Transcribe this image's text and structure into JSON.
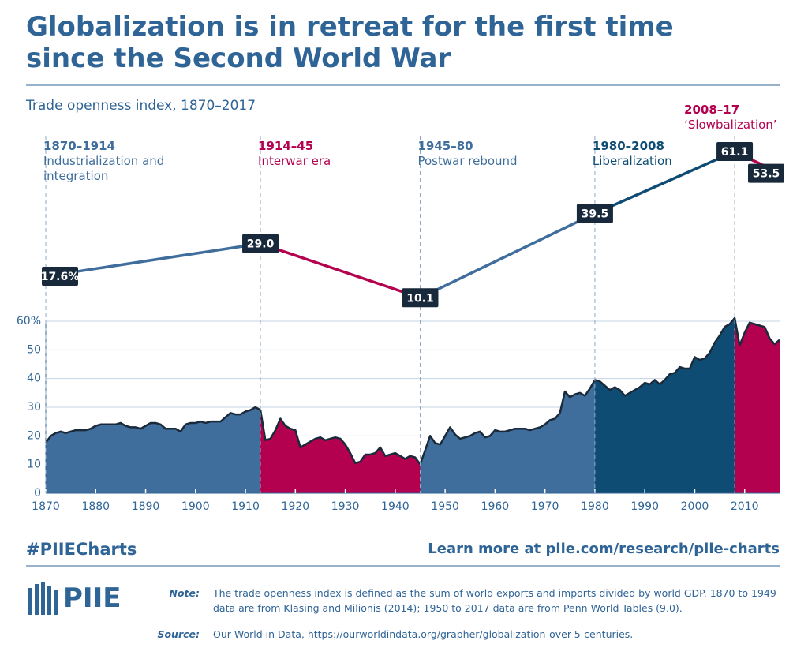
{
  "chart_data": {
    "type": "area",
    "title": "Globalization is in retreat for the first time since the Second World War",
    "subtitle": "Trade openness index, 1870–2017",
    "x": [
      1870,
      1871,
      1872,
      1873,
      1874,
      1875,
      1876,
      1877,
      1878,
      1879,
      1880,
      1881,
      1882,
      1883,
      1884,
      1885,
      1886,
      1887,
      1888,
      1889,
      1890,
      1891,
      1892,
      1893,
      1894,
      1895,
      1896,
      1897,
      1898,
      1899,
      1900,
      1901,
      1902,
      1903,
      1904,
      1905,
      1906,
      1907,
      1908,
      1909,
      1910,
      1911,
      1912,
      1913,
      1914,
      1915,
      1916,
      1917,
      1918,
      1919,
      1920,
      1921,
      1922,
      1923,
      1924,
      1925,
      1926,
      1927,
      1928,
      1929,
      1930,
      1931,
      1932,
      1933,
      1934,
      1935,
      1936,
      1937,
      1938,
      1939,
      1940,
      1941,
      1942,
      1943,
      1944,
      1945,
      1946,
      1947,
      1948,
      1949,
      1950,
      1951,
      1952,
      1953,
      1954,
      1955,
      1956,
      1957,
      1958,
      1959,
      1960,
      1961,
      1962,
      1963,
      1964,
      1965,
      1966,
      1967,
      1968,
      1969,
      1970,
      1971,
      1972,
      1973,
      1974,
      1975,
      1976,
      1977,
      1978,
      1979,
      1980,
      1981,
      1982,
      1983,
      1984,
      1985,
      1986,
      1987,
      1988,
      1989,
      1990,
      1991,
      1992,
      1993,
      1994,
      1995,
      1996,
      1997,
      1998,
      1999,
      2000,
      2001,
      2002,
      2003,
      2004,
      2005,
      2006,
      2007,
      2008,
      2009,
      2010,
      2011,
      2012,
      2013,
      2014,
      2015,
      2016,
      2017
    ],
    "values": [
      17.6,
      20,
      21,
      21.5,
      21,
      21.5,
      22,
      22,
      22,
      22.5,
      23.5,
      24,
      24,
      24,
      24,
      24.5,
      23.5,
      23,
      23,
      22.5,
      23.5,
      24.5,
      24.5,
      24,
      22.5,
      22.5,
      22.5,
      21.5,
      24,
      24.5,
      24.5,
      25,
      24.5,
      25,
      25,
      25,
      26.5,
      28,
      27.5,
      27.5,
      28.5,
      29,
      30,
      29,
      18.5,
      19,
      22,
      26,
      23.5,
      22.5,
      22,
      16,
      17,
      18,
      19,
      19.5,
      18.5,
      19,
      19.5,
      19,
      17,
      14,
      10.5,
      11,
      13.5,
      13.5,
      14,
      16,
      13,
      13.5,
      14,
      13,
      12,
      13,
      12.5,
      10.1,
      15,
      20,
      17.5,
      17,
      20,
      23,
      20.5,
      19,
      19.5,
      20,
      21,
      21.5,
      19.5,
      20,
      22,
      21.5,
      21.5,
      22,
      22.5,
      22.5,
      22.5,
      22,
      22.5,
      23,
      24,
      25.5,
      26,
      28,
      35.5,
      33.5,
      34.5,
      35,
      34,
      36.5,
      39.5,
      39,
      37.5,
      36,
      37,
      36,
      34,
      35,
      36,
      37,
      38.5,
      38,
      39.5,
      38,
      39.5,
      41.5,
      42,
      44,
      43.5,
      43.5,
      47.5,
      46.5,
      47,
      49,
      52.5,
      55,
      58,
      59,
      61.1,
      51.5,
      56,
      59.5,
      59,
      58.5,
      58,
      54,
      52,
      53.5
    ],
    "line_color": "#1b2a3a",
    "xlim": [
      1870,
      2017
    ],
    "ylim": [
      0,
      60
    ],
    "xticks": [
      1870,
      1880,
      1890,
      1900,
      1910,
      1920,
      1930,
      1940,
      1950,
      1960,
      1970,
      1980,
      1990,
      2000,
      2010
    ],
    "yticks": [
      0,
      10,
      20,
      30,
      40,
      50,
      {
        "value": 60,
        "label": "60%"
      }
    ],
    "grid": true,
    "summary": {
      "x": [
        1870,
        1913,
        1945,
        1980,
        2008,
        2017
      ],
      "values": [
        17.6,
        29.0,
        10.1,
        39.5,
        61.1,
        53.5
      ],
      "value_labels": [
        "17.6%",
        "29.0",
        "10.1",
        "39.5",
        "61.1",
        "53.5"
      ]
    },
    "eras": [
      {
        "period": "1870–1914",
        "name": "Industrialization and integration",
        "color": "#3f6d9c"
      },
      {
        "period": "1914–45",
        "name": "Interwar era",
        "color": "#b3004f"
      },
      {
        "period": "1945–80",
        "name": "Postwar rebound",
        "color": "#3f6d9c"
      },
      {
        "period": "1980–2008",
        "name": "Liberalization",
        "color": "#0f4c74"
      },
      {
        "period": "2008–17",
        "name": "‘Slowbalization’",
        "color": "#b3004f"
      }
    ]
  },
  "footer": {
    "hashtag": "#PIIECharts",
    "link": "Learn more at piie.com/research/piie-charts",
    "logo": "PIIE",
    "note_label": "Note:",
    "note": "The trade openness index is defined as the sum of world exports and imports divided by world GDP. 1870 to 1949 data are from Klasing and Milionis (2014); 1950 to 2017 data are from Penn World Tables (9.0).",
    "source_label": "Source:",
    "source": "Our World in Data, https://ourworldindata.org/grapher/globalization-over-5-centuries."
  }
}
